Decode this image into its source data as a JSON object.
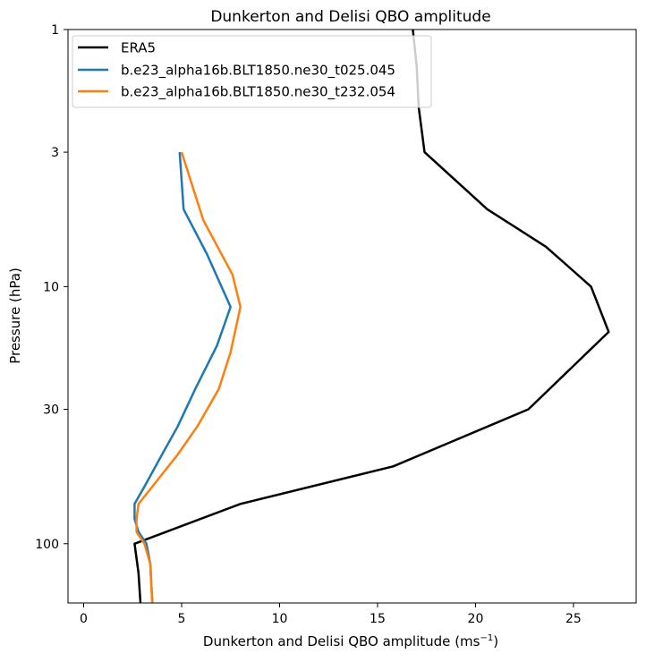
{
  "chart_data": {
    "type": "line",
    "title": "Dunkerton and Delisi QBO amplitude",
    "xlabel": "Dunkerton and Delisi QBO amplitude",
    "xlabel_unit_base": "(ms",
    "xlabel_unit_exp": "−1",
    "xlabel_unit_close": ")",
    "ylabel": "Pressure (hPa)",
    "xlim": [
      -0.8,
      28.2
    ],
    "ylim": [
      170,
      1
    ],
    "yscale": "log",
    "xticks": [
      0,
      5,
      10,
      15,
      20,
      25
    ],
    "xtick_labels": [
      "0",
      "5",
      "10",
      "15",
      "20",
      "25"
    ],
    "yticks": [
      1,
      3,
      10,
      30,
      100
    ],
    "ytick_labels": [
      "1",
      "3",
      "10",
      "30",
      "100"
    ],
    "legend_position": "top-left",
    "series": [
      {
        "name": "ERA5",
        "color": "#000000",
        "points": [
          [
            16.8,
            1
          ],
          [
            17.0,
            1.4
          ],
          [
            17.1,
            2
          ],
          [
            17.4,
            3
          ],
          [
            20.6,
            5
          ],
          [
            23.6,
            7
          ],
          [
            25.9,
            10
          ],
          [
            26.8,
            15
          ],
          [
            22.7,
            30
          ],
          [
            15.8,
            50
          ],
          [
            8.0,
            70
          ],
          [
            2.6,
            100
          ],
          [
            2.8,
            130
          ],
          [
            2.9,
            170
          ]
        ]
      },
      {
        "name": "b.e23_alpha16b.BLT1850.ne30_t025.045",
        "color": "#1f77b4",
        "points": [
          [
            4.9,
            3
          ],
          [
            5.1,
            5
          ],
          [
            6.3,
            7.5
          ],
          [
            7.5,
            12
          ],
          [
            6.8,
            17
          ],
          [
            5.7,
            25
          ],
          [
            4.8,
            35
          ],
          [
            4.0,
            45
          ],
          [
            3.1,
            60
          ],
          [
            2.6,
            70
          ],
          [
            2.6,
            80
          ],
          [
            2.8,
            90
          ],
          [
            3.2,
            100
          ],
          [
            3.4,
            120
          ],
          [
            3.5,
            170
          ]
        ]
      },
      {
        "name": "b.e23_alpha16b.BLT1850.ne30_t232.054",
        "color": "#ff7f0e",
        "points": [
          [
            5.0,
            3
          ],
          [
            6.1,
            5.5
          ],
          [
            7.6,
            9
          ],
          [
            8.0,
            12
          ],
          [
            7.5,
            18
          ],
          [
            6.9,
            25
          ],
          [
            5.8,
            35
          ],
          [
            4.8,
            45
          ],
          [
            3.5,
            60
          ],
          [
            2.8,
            70
          ],
          [
            2.7,
            80
          ],
          [
            2.7,
            90
          ],
          [
            3.1,
            100
          ],
          [
            3.4,
            120
          ],
          [
            3.5,
            170
          ]
        ]
      }
    ]
  }
}
